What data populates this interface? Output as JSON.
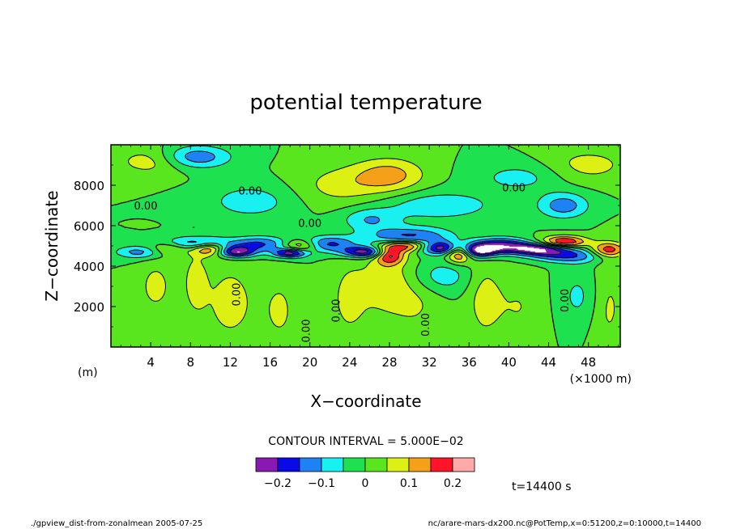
{
  "chart_data": {
    "type": "heatmap",
    "title": "potential temperature",
    "xlabel": "X−coordinate",
    "ylabel": "Z−coordinate",
    "x_unit_left": "(m)",
    "x_unit_right": "(×1000 m)",
    "xlim": [
      0,
      51.2
    ],
    "ylim": [
      0,
      10000
    ],
    "x_ticks": [
      4,
      8,
      12,
      16,
      20,
      24,
      28,
      32,
      36,
      40,
      44,
      48
    ],
    "x_tick_labels": [
      "4",
      "8",
      "12",
      "16",
      "20",
      "24",
      "28",
      "32",
      "36",
      "40",
      "44",
      "48"
    ],
    "y_ticks": [
      2000,
      4000,
      6000,
      8000
    ],
    "y_tick_labels": [
      "2000",
      "4000",
      "6000",
      "8000"
    ],
    "contour_interval_text": "CONTOUR INTERVAL = 5.000E−02",
    "contour_label": "0.00",
    "colorbar": {
      "boundaries": [
        -0.25,
        -0.2,
        -0.15,
        -0.1,
        -0.05,
        0,
        0.05,
        0.1,
        0.15,
        0.2,
        0.25
      ],
      "colors": [
        "#8a19b4",
        "#0a0ae6",
        "#1e82f5",
        "#19f0f0",
        "#1ee150",
        "#5ae61e",
        "#dcf014",
        "#f5a019",
        "#ff1428",
        "#ffaaaa"
      ],
      "tick_values": [
        -0.2,
        -0.1,
        0,
        0.1,
        0.2
      ],
      "tick_labels": [
        "−0.2",
        "−0.1",
        "0",
        "0.1",
        "0.2"
      ]
    },
    "features": [
      {
        "x": 10,
        "z": 4850,
        "v": 0.22,
        "sx": 1.2,
        "sz": 230
      },
      {
        "x": 12.5,
        "z": 4700,
        "v": -0.24,
        "sx": 1.4,
        "sz": 190
      },
      {
        "x": 9,
        "z": 5100,
        "v": -0.17,
        "sx": 2.5,
        "sz": 260
      },
      {
        "x": 18,
        "z": 4650,
        "v": -0.24,
        "sx": 1.2,
        "sz": 160
      },
      {
        "x": 19,
        "z": 5000,
        "v": 0.14,
        "sx": 1.2,
        "sz": 220
      },
      {
        "x": 22,
        "z": 5100,
        "v": -0.16,
        "sx": 2,
        "sz": 280
      },
      {
        "x": 25.5,
        "z": 4700,
        "v": -0.24,
        "sx": 1.6,
        "sz": 190
      },
      {
        "x": 28,
        "z": 4550,
        "v": 0.2,
        "sx": 1.0,
        "sz": 300
      },
      {
        "x": 30,
        "z": 5000,
        "v": 0.22,
        "sx": 1.8,
        "sz": 200
      },
      {
        "x": 30,
        "z": 5450,
        "v": -0.17,
        "sx": 3,
        "sz": 330
      },
      {
        "x": 33,
        "z": 4900,
        "v": -0.25,
        "sx": 1.6,
        "sz": 220
      },
      {
        "x": 35,
        "z": 4650,
        "v": 0.22,
        "sx": 0.9,
        "sz": 320
      },
      {
        "x": 37,
        "z": 4750,
        "v": -0.24,
        "sx": 1.3,
        "sz": 230
      },
      {
        "x": 39,
        "z": 5050,
        "v": -0.2,
        "sx": 2,
        "sz": 260
      },
      {
        "x": 43,
        "z": 4850,
        "v": -0.24,
        "sx": 2.2,
        "sz": 220
      },
      {
        "x": 45.5,
        "z": 5200,
        "v": 0.23,
        "sx": 1.6,
        "sz": 200
      },
      {
        "x": 46,
        "z": 4500,
        "v": -0.14,
        "sx": 2.6,
        "sz": 240
      },
      {
        "x": 50,
        "z": 4800,
        "v": 0.18,
        "sx": 1.2,
        "sz": 260
      },
      {
        "x": 3,
        "z": 4700,
        "v": -0.13,
        "sx": 1.8,
        "sz": 220
      },
      {
        "x": 6,
        "z": 4850,
        "v": 0.12,
        "sx": 1.6,
        "sz": 220
      },
      {
        "x": 15,
        "z": 5100,
        "v": -0.15,
        "sx": 2,
        "sz": 260
      },
      {
        "x": 8.5,
        "z": 9400,
        "v": -0.14,
        "sx": 2.5,
        "sz": 400
      },
      {
        "x": 4,
        "z": 9200,
        "v": 0.08,
        "sx": 2.5,
        "sz": 500
      },
      {
        "x": 14,
        "z": 7200,
        "v": -0.08,
        "sx": 3,
        "sz": 600
      },
      {
        "x": 23,
        "z": 8000,
        "v": 0.07,
        "sx": 3,
        "sz": 700
      },
      {
        "x": 28,
        "z": 8500,
        "v": 0.12,
        "sx": 2.5,
        "sz": 600
      },
      {
        "x": 33,
        "z": 7000,
        "v": -0.09,
        "sx": 4,
        "sz": 500
      },
      {
        "x": 45.5,
        "z": 7000,
        "v": -0.13,
        "sx": 1.8,
        "sz": 450
      },
      {
        "x": 41,
        "z": 8400,
        "v": -0.07,
        "sx": 3,
        "sz": 500
      },
      {
        "x": 48,
        "z": 9000,
        "v": 0.07,
        "sx": 3,
        "sz": 600
      },
      {
        "x": 26,
        "z": 6300,
        "v": -0.1,
        "sx": 2,
        "sz": 400
      },
      {
        "x": 4.5,
        "z": 3000,
        "v": 0.07,
        "sx": 1.2,
        "sz": 900
      },
      {
        "x": 8.5,
        "z": 3200,
        "v": 0.08,
        "sx": 0.8,
        "sz": 1000
      },
      {
        "x": 12,
        "z": 2200,
        "v": 0.07,
        "sx": 2,
        "sz": 1500
      },
      {
        "x": 17,
        "z": 1800,
        "v": 0.06,
        "sx": 1.2,
        "sz": 1200
      },
      {
        "x": 24,
        "z": 2400,
        "v": 0.07,
        "sx": 1.4,
        "sz": 1400
      },
      {
        "x": 27.5,
        "z": 3200,
        "v": 0.08,
        "sx": 1.5,
        "sz": 1000
      },
      {
        "x": 30.5,
        "z": 2500,
        "v": 0.06,
        "sx": 2,
        "sz": 1400
      },
      {
        "x": 33,
        "z": 3500,
        "v": -0.09,
        "sx": 2.2,
        "sz": 600
      },
      {
        "x": 37.5,
        "z": 2400,
        "v": 0.07,
        "sx": 1.2,
        "sz": 1400
      },
      {
        "x": 41,
        "z": 2000,
        "v": 0.05,
        "sx": 1.8,
        "sz": 1200
      },
      {
        "x": 47,
        "z": 2500,
        "v": -0.06,
        "sx": 1.5,
        "sz": 1000
      },
      {
        "x": 50,
        "z": 2000,
        "v": 0.06,
        "sx": 1.2,
        "sz": 1600
      }
    ]
  },
  "time_label": "t=14400 s",
  "footer_left": "./gpview_dist-from-zonalmean  2005-07-25",
  "footer_right": "nc/arare-mars-dx200.nc@PotTemp,x=0:51200,z=0:10000,t=14400"
}
